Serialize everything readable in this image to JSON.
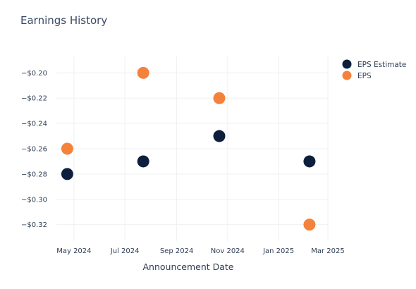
{
  "chart_data": {
    "type": "scatter",
    "title": "Earnings History",
    "xlabel": "Announcement Date",
    "ylabel": "",
    "x_tick_labels": [
      "May 2024",
      "Jul 2024",
      "Sep 2024",
      "Nov 2024",
      "Jan 2025",
      "Mar 2025"
    ],
    "x_tick_dates": [
      "2024-05-01",
      "2024-07-01",
      "2024-09-01",
      "2024-11-01",
      "2025-01-01",
      "2025-03-01"
    ],
    "x_range": [
      "2024-04-10",
      "2025-03-01"
    ],
    "y_tick_values": [
      -0.2,
      -0.22,
      -0.24,
      -0.26,
      -0.28,
      -0.3,
      -0.32
    ],
    "y_tick_labels": [
      "−$0.20",
      "−$0.22",
      "−$0.24",
      "−$0.26",
      "−$0.28",
      "−$0.30",
      "−$0.32"
    ],
    "ylim": [
      -0.333,
      -0.187
    ],
    "grid": true,
    "legend_position": "top-right",
    "series": [
      {
        "name": "EPS Estimate",
        "color": "#0d1f3c",
        "points": [
          {
            "x": "2024-04-23",
            "y": -0.28
          },
          {
            "x": "2024-07-23",
            "y": -0.27
          },
          {
            "x": "2024-10-22",
            "y": -0.25
          },
          {
            "x": "2025-02-07",
            "y": -0.27
          }
        ]
      },
      {
        "name": "EPS",
        "color": "#f5823a",
        "points": [
          {
            "x": "2024-04-23",
            "y": -0.26
          },
          {
            "x": "2024-07-23",
            "y": -0.2
          },
          {
            "x": "2024-10-22",
            "y": -0.22
          },
          {
            "x": "2025-02-07",
            "y": -0.32
          }
        ]
      }
    ]
  }
}
